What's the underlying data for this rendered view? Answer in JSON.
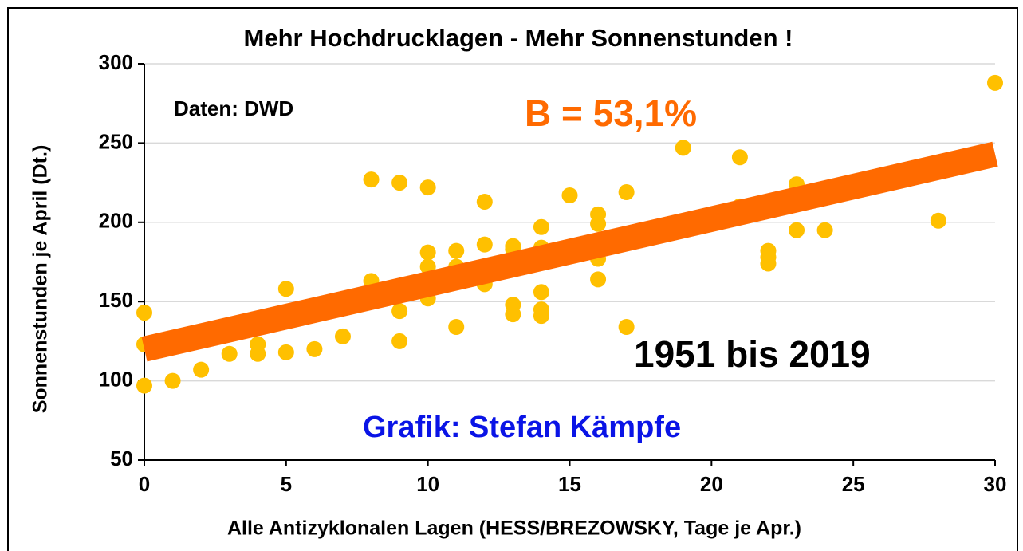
{
  "chart_data": {
    "type": "scatter",
    "title": "Mehr Hochdrucklagen - Mehr Sonnenstunden !",
    "x_label": "Alle Antizyklonalen Lagen (HESS/BREZOWSKY, Tage je Apr.)",
    "y_label": "Sonnenstunden je April (Dt.)",
    "annotations": [
      "Daten: DWD",
      "B = 53,1%",
      "1951 bis 2019",
      "Grafik: Stefan Kämpfe"
    ],
    "x": [
      0,
      0,
      0,
      1,
      2,
      3,
      4,
      4,
      5,
      5,
      6,
      7,
      8,
      8,
      9,
      9,
      9,
      10,
      10,
      10,
      10,
      11,
      11,
      11,
      12,
      12,
      12,
      13,
      13,
      13,
      13,
      14,
      14,
      14,
      14,
      14,
      15,
      16,
      16,
      16,
      16,
      17,
      17,
      19,
      21,
      21,
      22,
      22,
      22,
      23,
      23,
      24,
      28,
      30
    ],
    "values": [
      143,
      123,
      97,
      100,
      107,
      117,
      117,
      123,
      158,
      118,
      120,
      128,
      227,
      163,
      225,
      144,
      125,
      222,
      181,
      172,
      152,
      182,
      172,
      134,
      213,
      186,
      161,
      185,
      183,
      148,
      142,
      197,
      184,
      156,
      145,
      141,
      217,
      205,
      199,
      177,
      164,
      219,
      134,
      247,
      241,
      210,
      182,
      178,
      174,
      224,
      195,
      195,
      201,
      288
    ],
    "color": "#ffc000",
    "trendline": {
      "x": [
        0,
        30
      ],
      "y": [
        120,
        243
      ],
      "color": "#ff6a00"
    },
    "xlim": [
      0,
      30
    ],
    "xticks": [
      0,
      5,
      10,
      15,
      20,
      25,
      30
    ],
    "ylim": [
      50,
      300
    ],
    "yticks": [
      50,
      100,
      150,
      200,
      250,
      300
    ],
    "grid": true
  }
}
